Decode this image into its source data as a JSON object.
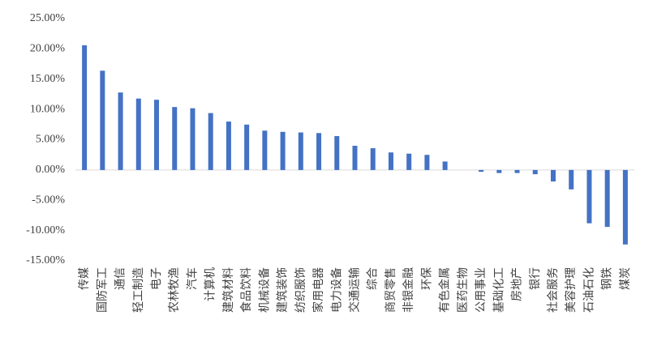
{
  "chart_data": {
    "type": "bar",
    "categories": [
      "传媒",
      "国防军工",
      "通信",
      "轻工制造",
      "电子",
      "农林牧渔",
      "汽车",
      "计算机",
      "建筑材料",
      "食品饮料",
      "机械设备",
      "建筑装饰",
      "纺织服饰",
      "家用电器",
      "电力设备",
      "交通运输",
      "综合",
      "商贸零售",
      "非银金融",
      "环保",
      "有色金属",
      "医药生物",
      "公用事业",
      "基础化工",
      "房地产",
      "银行",
      "社会服务",
      "美容护理",
      "石油石化",
      "钢铁",
      "煤炭"
    ],
    "values": [
      20.6,
      16.4,
      12.8,
      11.8,
      11.6,
      10.4,
      10.2,
      9.4,
      8.0,
      7.5,
      6.5,
      6.3,
      6.2,
      6.1,
      5.6,
      4.0,
      3.6,
      2.9,
      2.7,
      2.5,
      1.4,
      0.0,
      -0.3,
      -0.5,
      -0.5,
      -0.7,
      -1.9,
      -3.2,
      -8.8,
      -9.4,
      -12.3
    ],
    "color": "#4472c4",
    "ylim": [
      -15,
      25
    ],
    "yticks": [
      {
        "value": -15,
        "label": "-15.00%"
      },
      {
        "value": -10,
        "label": "-10.00%"
      },
      {
        "value": -5,
        "label": "-5.00%"
      },
      {
        "value": 0,
        "label": "0.00%"
      },
      {
        "value": 5,
        "label": "5.00%"
      },
      {
        "value": 10,
        "label": "10.00%"
      },
      {
        "value": 15,
        "label": "15.00%"
      },
      {
        "value": 20,
        "label": "20.00%"
      },
      {
        "value": 25,
        "label": "25.00%"
      }
    ],
    "grid": false
  }
}
